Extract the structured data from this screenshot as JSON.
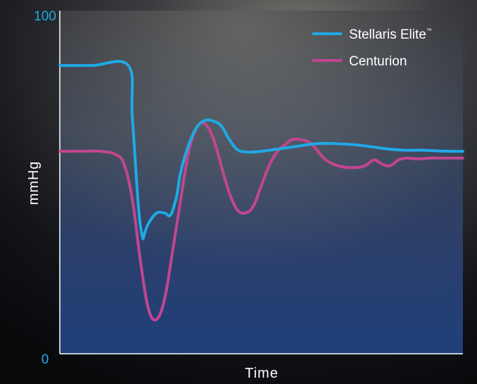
{
  "chart_data": {
    "type": "line",
    "xlabel": "Time",
    "ylabel": "mmHg",
    "ylim": [
      0,
      100
    ],
    "xlim": [
      0,
      100
    ],
    "yticks": [
      "100",
      "0"
    ],
    "grid": false,
    "legend_position": "top-right",
    "series": [
      {
        "name": "Stellaris Elite",
        "name_suffix": "™",
        "color": "#1fa9e6",
        "x": [
          0,
          8,
          17,
          18,
          19.5,
          20.5,
          21,
          22,
          24,
          26,
          27.5,
          29,
          30,
          32,
          34,
          36,
          38,
          40,
          42,
          44,
          46,
          48,
          50,
          52,
          55,
          58,
          62,
          66,
          70,
          74,
          78,
          82,
          86,
          90,
          94,
          97,
          100
        ],
        "values": [
          84,
          84,
          84,
          69,
          43,
          34,
          35,
          38,
          41,
          41,
          40.5,
          46,
          53,
          61,
          66,
          68,
          67.8,
          66.5,
          62.5,
          59.5,
          58.8,
          58.8,
          59,
          59.3,
          59.8,
          60.3,
          61,
          61.3,
          61.1,
          60.8,
          60.2,
          59.6,
          59.3,
          59.3,
          59.1,
          59,
          59
        ]
      },
      {
        "name": "Centurion",
        "color": "#c2468f",
        "x": [
          0,
          5,
          10,
          14,
          16,
          18,
          20,
          22,
          24,
          26,
          28,
          30,
          32,
          34,
          36,
          38,
          40,
          42,
          44,
          46,
          48,
          50,
          52,
          54,
          56,
          58,
          62,
          66,
          70,
          74,
          76,
          78,
          80,
          82,
          84,
          86,
          88,
          89,
          90,
          92,
          95,
          100
        ],
        "values": [
          59,
          59,
          59,
          58,
          55,
          45,
          27,
          13,
          10,
          16,
          30,
          45,
          59,
          66,
          67,
          63,
          55,
          47,
          42,
          41,
          43,
          49,
          55,
          59,
          61,
          62.5,
          61.5,
          56.5,
          54.5,
          54.3,
          55,
          56.5,
          55.2,
          54.8,
          56.5,
          57,
          56.8,
          56.8,
          56.8,
          57,
          57,
          57
        ]
      }
    ]
  }
}
